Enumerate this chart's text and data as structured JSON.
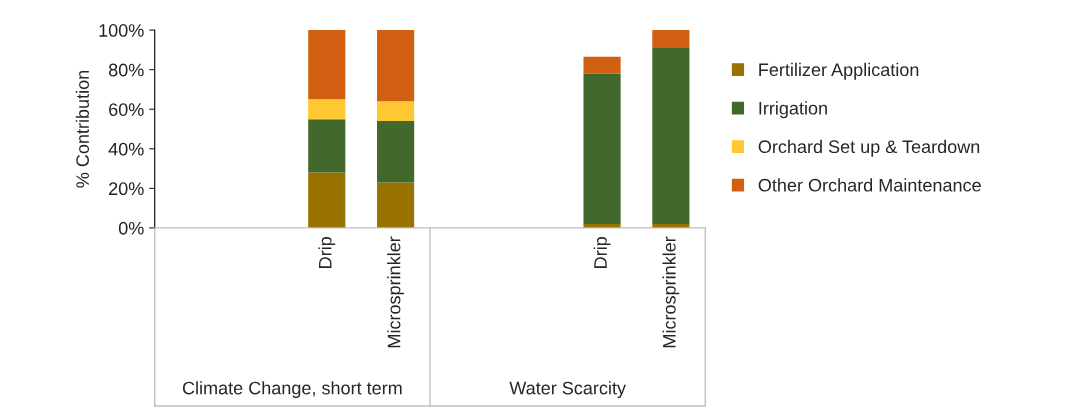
{
  "chart_data": {
    "type": "bar",
    "stacked": true,
    "ylabel": "% Contribution",
    "categories": [
      null,
      null,
      "Drip",
      "Microsprinkler",
      null,
      null,
      "Drip",
      "Microsprinkler"
    ],
    "series": [
      {
        "name": "Fertilizer Application",
        "color": "#997300",
        "values": [
          null,
          null,
          28,
          23,
          null,
          null,
          2,
          2
        ]
      },
      {
        "name": "Irrigation",
        "color": "#43682b",
        "values": [
          null,
          null,
          27,
          31,
          null,
          null,
          76,
          89
        ]
      },
      {
        "name": "Orchard Set up & Teardown",
        "color": "#ffc832",
        "values": [
          null,
          null,
          10,
          10,
          null,
          null,
          null,
          null
        ]
      },
      {
        "name": "Other Orchard Maintenance",
        "color": "#d26012",
        "values": [
          null,
          null,
          35,
          36,
          null,
          null,
          8.5,
          9
        ]
      }
    ],
    "ylim": [
      0,
      100
    ],
    "yticks": [
      {
        "value": 0,
        "label": "0%"
      },
      {
        "value": 20,
        "label": "20%"
      },
      {
        "value": 40,
        "label": "40%"
      },
      {
        "value": 60,
        "label": "60%"
      },
      {
        "value": 80,
        "label": "80%"
      },
      {
        "value": 100,
        "label": "100%"
      }
    ],
    "annotations": [
      "Climate Change, short term",
      "Water Scarcity"
    ],
    "grid": false,
    "legend": "right"
  }
}
